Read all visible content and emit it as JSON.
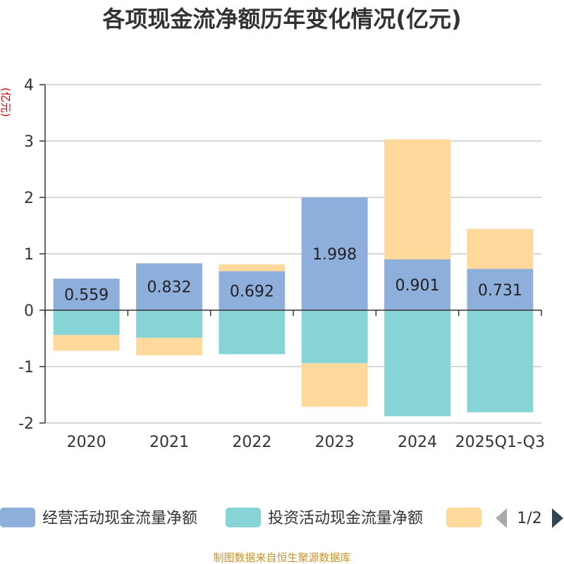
{
  "chart_data": {
    "type": "bar",
    "stacked": true,
    "title": "各项现金流净额历年变化情况(亿元)",
    "ylabel": "(亿元)",
    "xlabel": "",
    "categories": [
      "2020",
      "2021",
      "2022",
      "2023",
      "2024",
      "2025Q1-Q3"
    ],
    "ylim": [
      -2,
      4
    ],
    "yticks": [
      4,
      3,
      2,
      1,
      0,
      -1,
      -2
    ],
    "grid": true,
    "series": [
      {
        "name": "经营活动现金流量净额",
        "color": "#8eaedb",
        "values": [
          0.559,
          0.832,
          0.692,
          1.998,
          0.901,
          0.731
        ],
        "labels": [
          "0.559",
          "0.832",
          "0.692",
          "1.998",
          "0.901",
          "0.731"
        ]
      },
      {
        "name": "投资活动现金流量净额",
        "color": "#86d4d6",
        "values": [
          -0.44,
          -0.49,
          -0.78,
          -0.94,
          -1.88,
          -1.81
        ]
      },
      {
        "name": "",
        "color": "#fed99b",
        "values": [
          -0.28,
          -0.31,
          0.12,
          -0.77,
          2.13,
          0.71
        ]
      }
    ]
  },
  "legend": {
    "items": [
      "经营活动现金流量净额",
      "投资活动现金流量净额",
      ""
    ],
    "page": "1/2"
  },
  "source": "制图数据来自恒生聚源数据库"
}
